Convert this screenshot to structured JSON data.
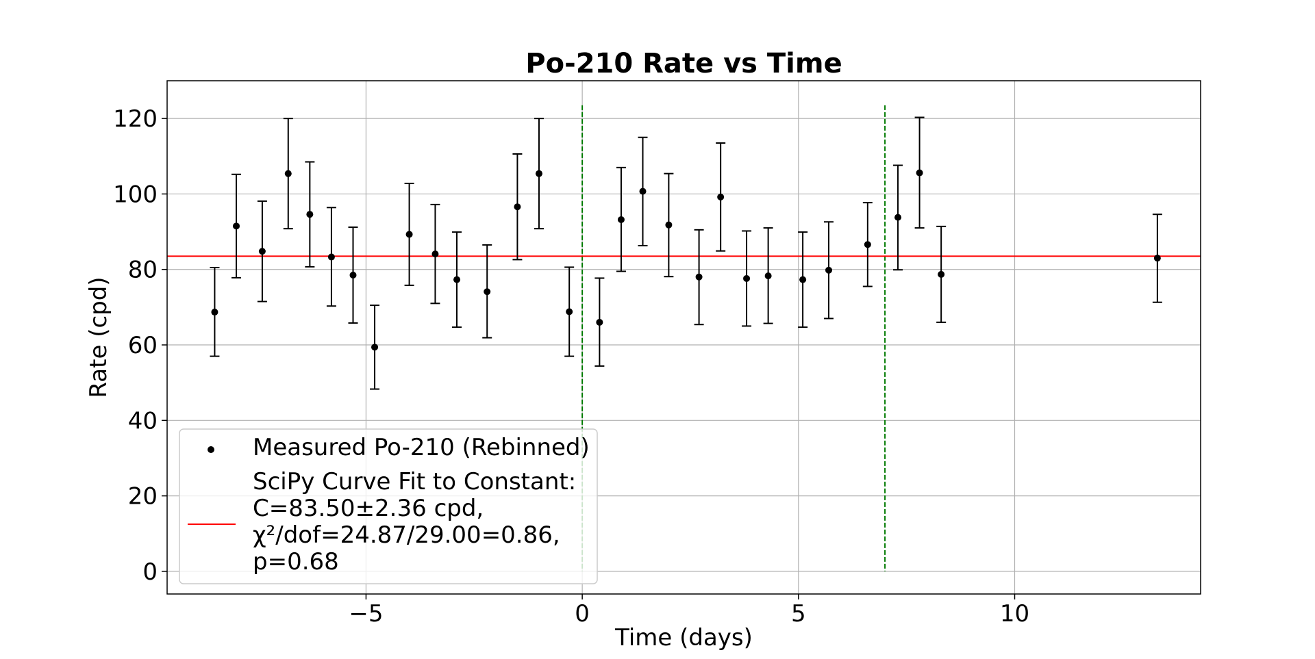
{
  "chart_data": {
    "type": "scatter",
    "title": "Po-210 Rate vs Time",
    "xlabel": "Time (days)",
    "ylabel": "Rate (cpd)",
    "xlim": [
      -9.6,
      14.3
    ],
    "ylim": [
      -6,
      130
    ],
    "xticks": [
      -5,
      0,
      5,
      10
    ],
    "xtick_labels": [
      "−5",
      "0",
      "5",
      "10"
    ],
    "yticks": [
      0,
      20,
      40,
      60,
      80,
      100,
      120
    ],
    "ytick_labels": [
      "0",
      "20",
      "40",
      "60",
      "80",
      "100",
      "120"
    ],
    "grid": true,
    "legend_position": "lower-left",
    "colors": {
      "points": "#000000",
      "fit_line": "#ff0000",
      "vlines": "#007a00",
      "grid": "#b0b0b0"
    },
    "series": [
      {
        "name": "Measured Po-210 (Rebinned)",
        "marker": "point",
        "points": [
          {
            "x": -8.5,
            "y": 68.7,
            "lo": 57.0,
            "hi": 80.5
          },
          {
            "x": -8.0,
            "y": 91.5,
            "lo": 77.8,
            "hi": 105.2
          },
          {
            "x": -7.4,
            "y": 84.8,
            "lo": 71.5,
            "hi": 98.1
          },
          {
            "x": -6.8,
            "y": 105.4,
            "lo": 90.8,
            "hi": 120.0
          },
          {
            "x": -6.3,
            "y": 94.6,
            "lo": 80.7,
            "hi": 108.5
          },
          {
            "x": -5.8,
            "y": 83.3,
            "lo": 70.3,
            "hi": 96.4
          },
          {
            "x": -5.3,
            "y": 78.5,
            "lo": 65.8,
            "hi": 91.2
          },
          {
            "x": -4.8,
            "y": 59.4,
            "lo": 48.3,
            "hi": 70.5
          },
          {
            "x": -4.0,
            "y": 89.3,
            "lo": 75.8,
            "hi": 102.8
          },
          {
            "x": -3.4,
            "y": 84.1,
            "lo": 71.0,
            "hi": 97.2
          },
          {
            "x": -2.9,
            "y": 77.3,
            "lo": 64.7,
            "hi": 89.9
          },
          {
            "x": -2.2,
            "y": 74.1,
            "lo": 61.9,
            "hi": 86.5
          },
          {
            "x": -1.5,
            "y": 96.6,
            "lo": 82.6,
            "hi": 110.6
          },
          {
            "x": -1.0,
            "y": 105.4,
            "lo": 90.8,
            "hi": 120.0
          },
          {
            "x": -0.3,
            "y": 68.8,
            "lo": 57.0,
            "hi": 80.6
          },
          {
            "x": 0.4,
            "y": 66.0,
            "lo": 54.4,
            "hi": 77.7
          },
          {
            "x": 0.9,
            "y": 93.2,
            "lo": 79.5,
            "hi": 107.0
          },
          {
            "x": 1.4,
            "y": 100.7,
            "lo": 86.3,
            "hi": 115.0
          },
          {
            "x": 2.0,
            "y": 91.8,
            "lo": 78.1,
            "hi": 105.4
          },
          {
            "x": 2.7,
            "y": 78.0,
            "lo": 65.4,
            "hi": 90.5
          },
          {
            "x": 3.2,
            "y": 99.2,
            "lo": 84.9,
            "hi": 113.5
          },
          {
            "x": 3.8,
            "y": 77.6,
            "lo": 65.0,
            "hi": 90.2
          },
          {
            "x": 4.3,
            "y": 78.3,
            "lo": 65.7,
            "hi": 91.0
          },
          {
            "x": 5.1,
            "y": 77.3,
            "lo": 64.7,
            "hi": 89.9
          },
          {
            "x": 5.7,
            "y": 79.8,
            "lo": 67.0,
            "hi": 92.6
          },
          {
            "x": 6.6,
            "y": 86.6,
            "lo": 75.5,
            "hi": 97.7
          },
          {
            "x": 7.3,
            "y": 93.8,
            "lo": 79.9,
            "hi": 107.6
          },
          {
            "x": 7.8,
            "y": 105.6,
            "lo": 91.0,
            "hi": 120.3
          },
          {
            "x": 8.3,
            "y": 78.7,
            "lo": 66.0,
            "hi": 91.4
          },
          {
            "x": 13.3,
            "y": 83.0,
            "lo": 71.3,
            "hi": 94.6
          }
        ]
      },
      {
        "name": "SciPy Curve Fit to Constant:\nC=83.50±2.36 cpd,\nχ²/dof=24.87/29.00=0.86,\np=0.68",
        "type": "hline",
        "y": 83.5
      }
    ],
    "vlines": [
      {
        "x": 0.0,
        "ymin": 0,
        "ymax": 123.5
      },
      {
        "x": 7.0,
        "ymin": 0,
        "ymax": 123.5
      }
    ],
    "legend": [
      "Measured Po-210 (Rebinned)",
      "SciPy Curve Fit to Constant:",
      "C=83.50±2.36 cpd,",
      "χ²/dof=24.87/29.00=0.86,",
      "p=0.68"
    ]
  }
}
